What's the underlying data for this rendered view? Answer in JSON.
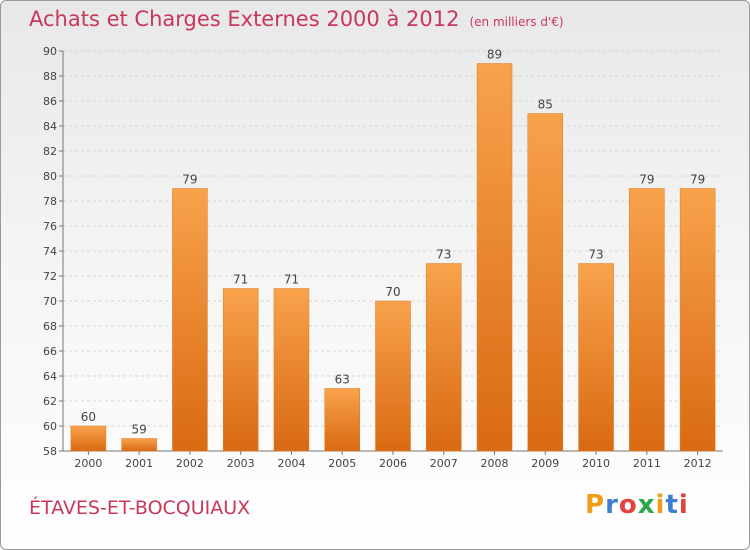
{
  "chart_data": {
    "type": "bar",
    "title": "Achats et Charges Externes 2000 à 2012",
    "subtitle": "(en milliers d'€)",
    "categories": [
      "2000",
      "2001",
      "2002",
      "2003",
      "2004",
      "2005",
      "2006",
      "2007",
      "2008",
      "2009",
      "2010",
      "2011",
      "2012"
    ],
    "values": [
      60,
      59,
      79,
      71,
      71,
      63,
      70,
      73,
      89,
      85,
      73,
      79,
      79
    ],
    "ylim": [
      58,
      90
    ],
    "yticks": [
      58,
      60,
      62,
      64,
      66,
      68,
      70,
      72,
      74,
      76,
      78,
      80,
      82,
      84,
      86,
      88,
      90
    ],
    "grid": true,
    "xlabel": "",
    "ylabel": "",
    "bar_color": "#f08a2c"
  },
  "place_name": "ÉTAVES-ET-BOCQUIAUX",
  "logo": {
    "letters": [
      "P",
      "r",
      "o",
      "x",
      "i",
      "t",
      "i"
    ],
    "colors": [
      "#f39c1a",
      "#3a7fd0",
      "#e0443c",
      "#2aa64b",
      "#f39c1a",
      "#3a7fd0",
      "#e0443c"
    ]
  }
}
